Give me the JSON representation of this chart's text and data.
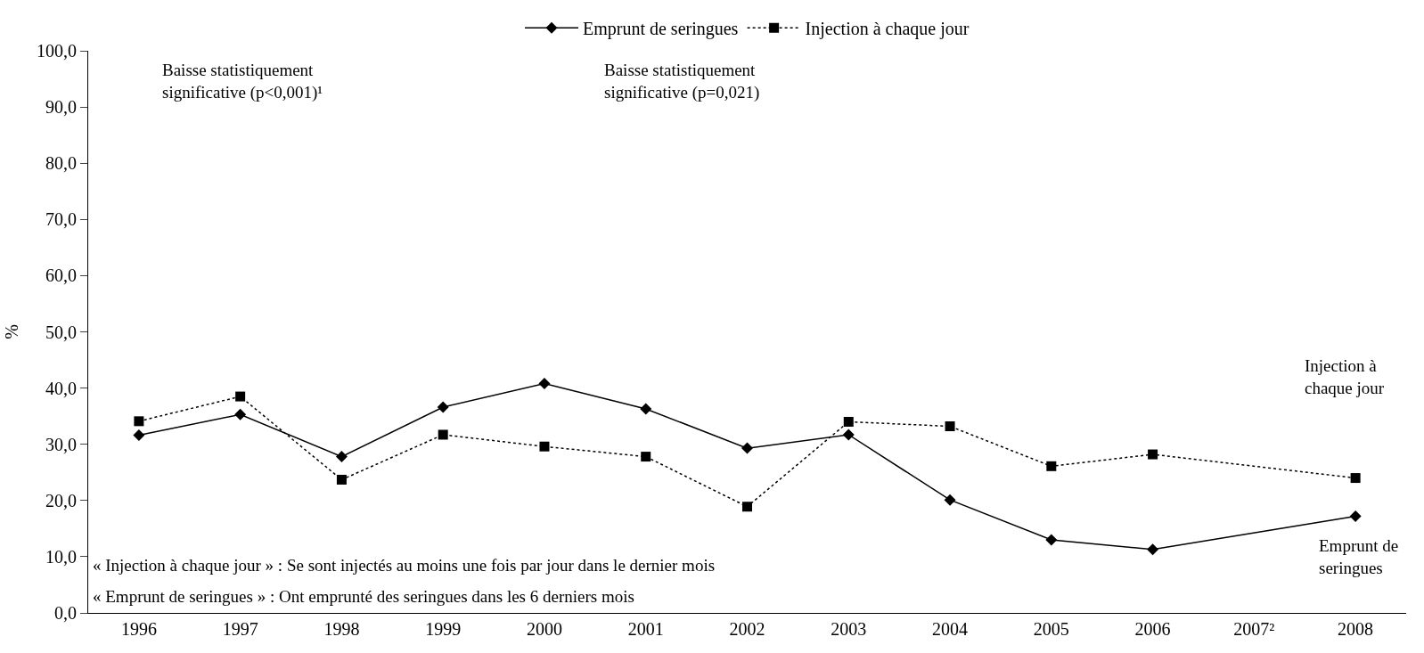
{
  "chart_data": {
    "type": "line",
    "ylabel": "%",
    "categories": [
      "1996",
      "1997",
      "1998",
      "1999",
      "2000",
      "2001",
      "2002",
      "2003",
      "2004",
      "2005",
      "2006",
      "2007²",
      "2008"
    ],
    "series": [
      {
        "name": "Emprunt de seringues",
        "color": "#000000",
        "marker": "diamond",
        "line_style": "solid",
        "values": [
          31.6,
          35.3,
          27.8,
          36.6,
          40.8,
          36.3,
          29.3,
          31.7,
          20.1,
          13.0,
          11.3,
          null,
          17.2
        ]
      },
      {
        "name": "Injection à chaque jour",
        "color": "#000000",
        "marker": "square",
        "line_style": "dotted",
        "values": [
          34.1,
          38.5,
          23.7,
          31.7,
          29.6,
          27.8,
          18.9,
          34.0,
          33.2,
          26.1,
          28.2,
          null,
          24.0
        ]
      }
    ],
    "ylim": [
      0,
      100
    ],
    "yticks": [
      {
        "value": 0,
        "label": "0,0"
      },
      {
        "value": 10,
        "label": "10,0"
      },
      {
        "value": 20,
        "label": "20,0"
      },
      {
        "value": 30,
        "label": "30,0"
      },
      {
        "value": 40,
        "label": "40,0"
      },
      {
        "value": 50,
        "label": "50,0"
      },
      {
        "value": 60,
        "label": "60,0"
      },
      {
        "value": 70,
        "label": "70,0"
      },
      {
        "value": 80,
        "label": "80,0"
      },
      {
        "value": 90,
        "label": "90,0"
      },
      {
        "value": 100,
        "label": "100,0"
      }
    ],
    "legend": "top",
    "annotations": [
      "Baisse statistiquement\nsignificative (p<0,001)¹",
      "Baisse statistiquement\nsignificative (p=0,021)",
      "Injection à\nchaque jour",
      "Emprunt de\nseringues",
      "« Injection à chaque jour » : Se sont injectés au moins une fois par jour dans le dernier mois",
      "« Emprunt de seringues » : Ont emprunté des seringues dans les 6 derniers mois"
    ]
  }
}
